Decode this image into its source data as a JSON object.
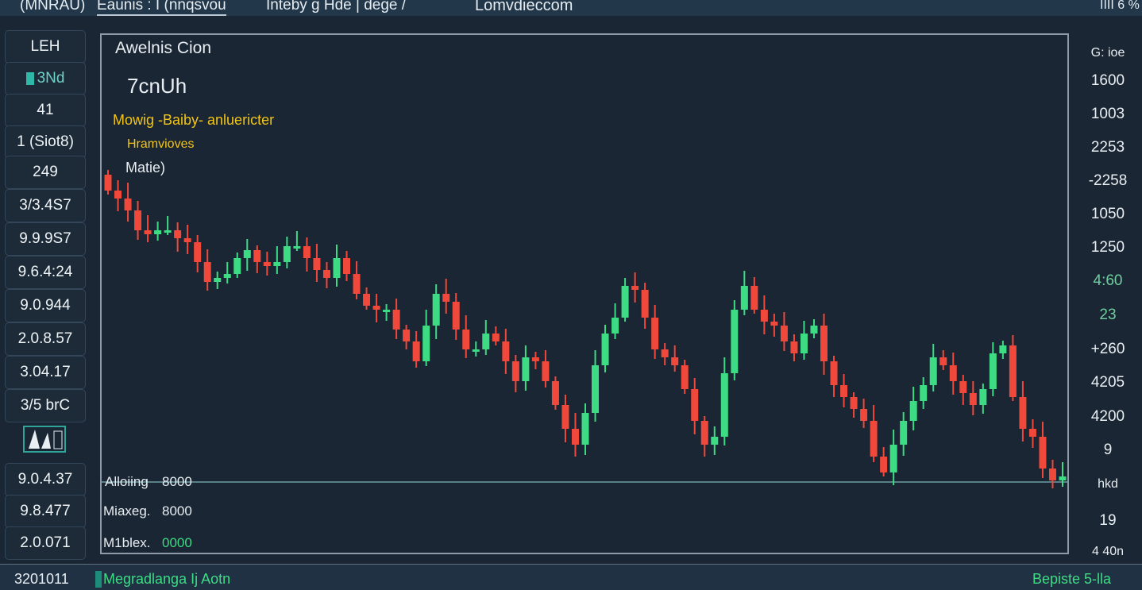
{
  "topbar": {
    "items": [
      "(MNRAU)",
      "Eaunis : I (nnqsvou",
      "Inteby g Hde | dege /",
      "Lomvdieccom"
    ],
    "status": "IIII 6 %"
  },
  "sidebar": {
    "items": [
      "LEH",
      "3Nd",
      "41",
      "1 (Siot8)",
      "249",
      "3/3.4S7",
      "9.9.9S7",
      "9.6.4:24",
      "9.0.944",
      "2.0.8.57",
      "3.04.17",
      "3/5 brC",
      "",
      "9.0.4.37",
      "9.8.477",
      "2.0.071"
    ]
  },
  "panel": {
    "title": "Awelnis Cion",
    "subtitle": "7cnUh",
    "indicator": "Mowig -Baiby- anluericter",
    "indicator_sub": "Hramvioves",
    "mode": "Matie)",
    "stats": [
      {
        "label": "Alloiing",
        "value": "8000"
      },
      {
        "label": "Miaxeg.",
        "value": "8000"
      },
      {
        "label": "M1blex.",
        "value": "0000"
      }
    ]
  },
  "right_axis": [
    "G: ioe",
    "1600",
    "1003",
    "2253",
    "-2258",
    "1050",
    "1250",
    "4:60",
    "23",
    "+260",
    "4205",
    "4200",
    "9",
    "hkd",
    "19",
    "4 40n"
  ],
  "bottombar": {
    "left": "3201011",
    "legend": "Megradlanga Ij Aotn",
    "right": "Bepiste 5-lla"
  },
  "colors": {
    "up": "#3ddc84",
    "down": "#f0483a",
    "accent_yellow": "#f2c418",
    "accent_green": "#3ddc84"
  },
  "chart_data": {
    "type": "candlestick",
    "ylim": [
      22,
      678
    ],
    "first_open": 500,
    "close": [
      480,
      470,
      455,
      430,
      425,
      430,
      430,
      420,
      415,
      390,
      365,
      370,
      375,
      395,
      405,
      390,
      385,
      390,
      410,
      410,
      395,
      380,
      370,
      395,
      375,
      350,
      335,
      330,
      330,
      305,
      290,
      265,
      310,
      350,
      340,
      305,
      280,
      280,
      300,
      290,
      265,
      240,
      270,
      265,
      240,
      210,
      180,
      160,
      200,
      260,
      300,
      320,
      360,
      355,
      320,
      280,
      270,
      260,
      230,
      190,
      160,
      170,
      250,
      330,
      360,
      330,
      315,
      310,
      290,
      275,
      300,
      310,
      265,
      235,
      220,
      205,
      190,
      145,
      125,
      160,
      190,
      215,
      235,
      270,
      260,
      240,
      225,
      210,
      230,
      275,
      285,
      220,
      180,
      170,
      130,
      115,
      120
    ],
    "reference_line": 113
  }
}
